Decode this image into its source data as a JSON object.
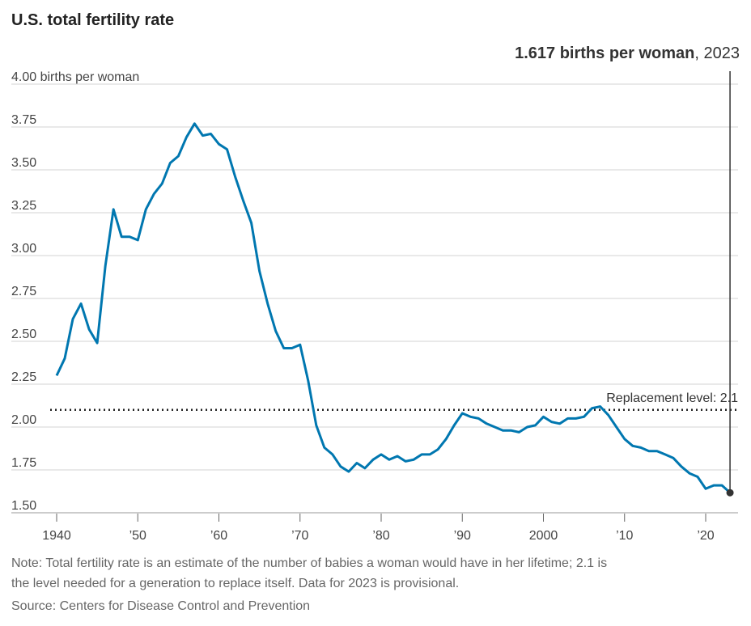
{
  "chart_data": {
    "type": "line",
    "title": "U.S. total fertility rate",
    "ylabel": "births per woman",
    "ylim": [
      1.5,
      4.0
    ],
    "xlim": [
      1940,
      2023
    ],
    "grid": true,
    "y_ticks": [
      4.0,
      3.75,
      3.5,
      3.25,
      3.0,
      2.75,
      2.5,
      2.25,
      2.0,
      1.75,
      1.5
    ],
    "y_tick_labels": [
      "4.00 births per woman",
      "3.75",
      "3.50",
      "3.25",
      "3.00",
      "2.75",
      "2.50",
      "2.25",
      "2.00",
      "1.75",
      "1.50"
    ],
    "x_ticks": [
      1940,
      1950,
      1960,
      1970,
      1980,
      1990,
      2000,
      2010,
      2020
    ],
    "x_tick_labels": [
      "1940",
      "’50",
      "’60",
      "’70",
      "’80",
      "’90",
      "2000",
      "’10",
      "’20"
    ],
    "color": "#0077b0",
    "x": [
      1940,
      1941,
      1942,
      1943,
      1944,
      1945,
      1946,
      1947,
      1948,
      1949,
      1950,
      1951,
      1952,
      1953,
      1954,
      1955,
      1956,
      1957,
      1958,
      1959,
      1960,
      1961,
      1962,
      1963,
      1964,
      1965,
      1966,
      1967,
      1968,
      1969,
      1970,
      1971,
      1972,
      1973,
      1974,
      1975,
      1976,
      1977,
      1978,
      1979,
      1980,
      1981,
      1982,
      1983,
      1984,
      1985,
      1986,
      1987,
      1988,
      1989,
      1990,
      1991,
      1992,
      1993,
      1994,
      1995,
      1996,
      1997,
      1998,
      1999,
      2000,
      2001,
      2002,
      2003,
      2004,
      2005,
      2006,
      2007,
      2008,
      2009,
      2010,
      2011,
      2012,
      2013,
      2014,
      2015,
      2016,
      2017,
      2018,
      2019,
      2020,
      2021,
      2022,
      2023
    ],
    "values": [
      2.3,
      2.4,
      2.63,
      2.72,
      2.57,
      2.49,
      2.94,
      3.27,
      3.11,
      3.11,
      3.09,
      3.27,
      3.36,
      3.42,
      3.54,
      3.58,
      3.69,
      3.77,
      3.7,
      3.71,
      3.65,
      3.62,
      3.46,
      3.32,
      3.19,
      2.91,
      2.72,
      2.56,
      2.46,
      2.46,
      2.48,
      2.27,
      2.01,
      1.88,
      1.84,
      1.77,
      1.74,
      1.79,
      1.76,
      1.81,
      1.84,
      1.81,
      1.83,
      1.8,
      1.81,
      1.84,
      1.84,
      1.87,
      1.93,
      2.01,
      2.08,
      2.06,
      2.05,
      2.02,
      2.0,
      1.98,
      1.98,
      1.97,
      2.0,
      2.01,
      2.06,
      2.03,
      2.02,
      2.05,
      2.05,
      2.06,
      2.11,
      2.12,
      2.07,
      2.0,
      1.93,
      1.89,
      1.88,
      1.86,
      1.86,
      1.84,
      1.82,
      1.77,
      1.73,
      1.71,
      1.64,
      1.66,
      1.66,
      1.617
    ],
    "reference_line": {
      "value": 2.1,
      "label": "Replacement level: 2.1"
    },
    "annotation": {
      "bold": "1.617 births per woman",
      "rest": ", 2023"
    }
  },
  "notes": {
    "line1": "Note: Total fertility rate is an estimate of the number of babies a woman would have in her lifetime; 2.1 is",
    "line2": "the level needed for a generation to replace itself. Data for 2023 is provisional.",
    "source": "Source: Centers for Disease Control and Prevention"
  }
}
